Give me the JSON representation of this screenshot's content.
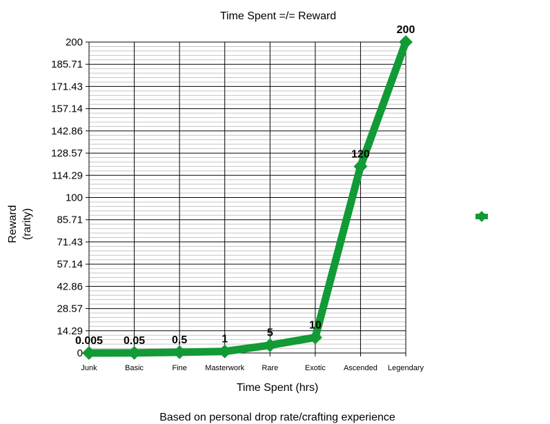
{
  "chart_data": {
    "type": "line",
    "title": "Time Spent =/= Reward",
    "xlabel": "Time Spent (hrs)",
    "ylabel_line1": "Reward",
    "ylabel_line2": "(rarity)",
    "caption": "Based on personal drop rate/crafting experience",
    "categories": [
      "Junk",
      "Basic",
      "Fine",
      "Masterwork",
      "Rare",
      "Exotic",
      "Ascended",
      "Legendary"
    ],
    "series": [
      {
        "values": [
          0.005,
          0.05,
          0.5,
          1,
          5,
          10,
          120,
          200
        ],
        "data_labels": [
          "0.005",
          "0.05",
          "0.5",
          "1",
          "5",
          "10",
          "120",
          "200"
        ]
      }
    ],
    "ylim": [
      0,
      200
    ],
    "yticks": [
      "0",
      "14.29",
      "28.57",
      "42.86",
      "57.14",
      "71.43",
      "85.71",
      "100",
      "114.29",
      "128.57",
      "142.86",
      "157.14",
      "171.43",
      "185.71",
      "200"
    ],
    "grid": true,
    "legend": "right",
    "series_color": "#119a36"
  }
}
